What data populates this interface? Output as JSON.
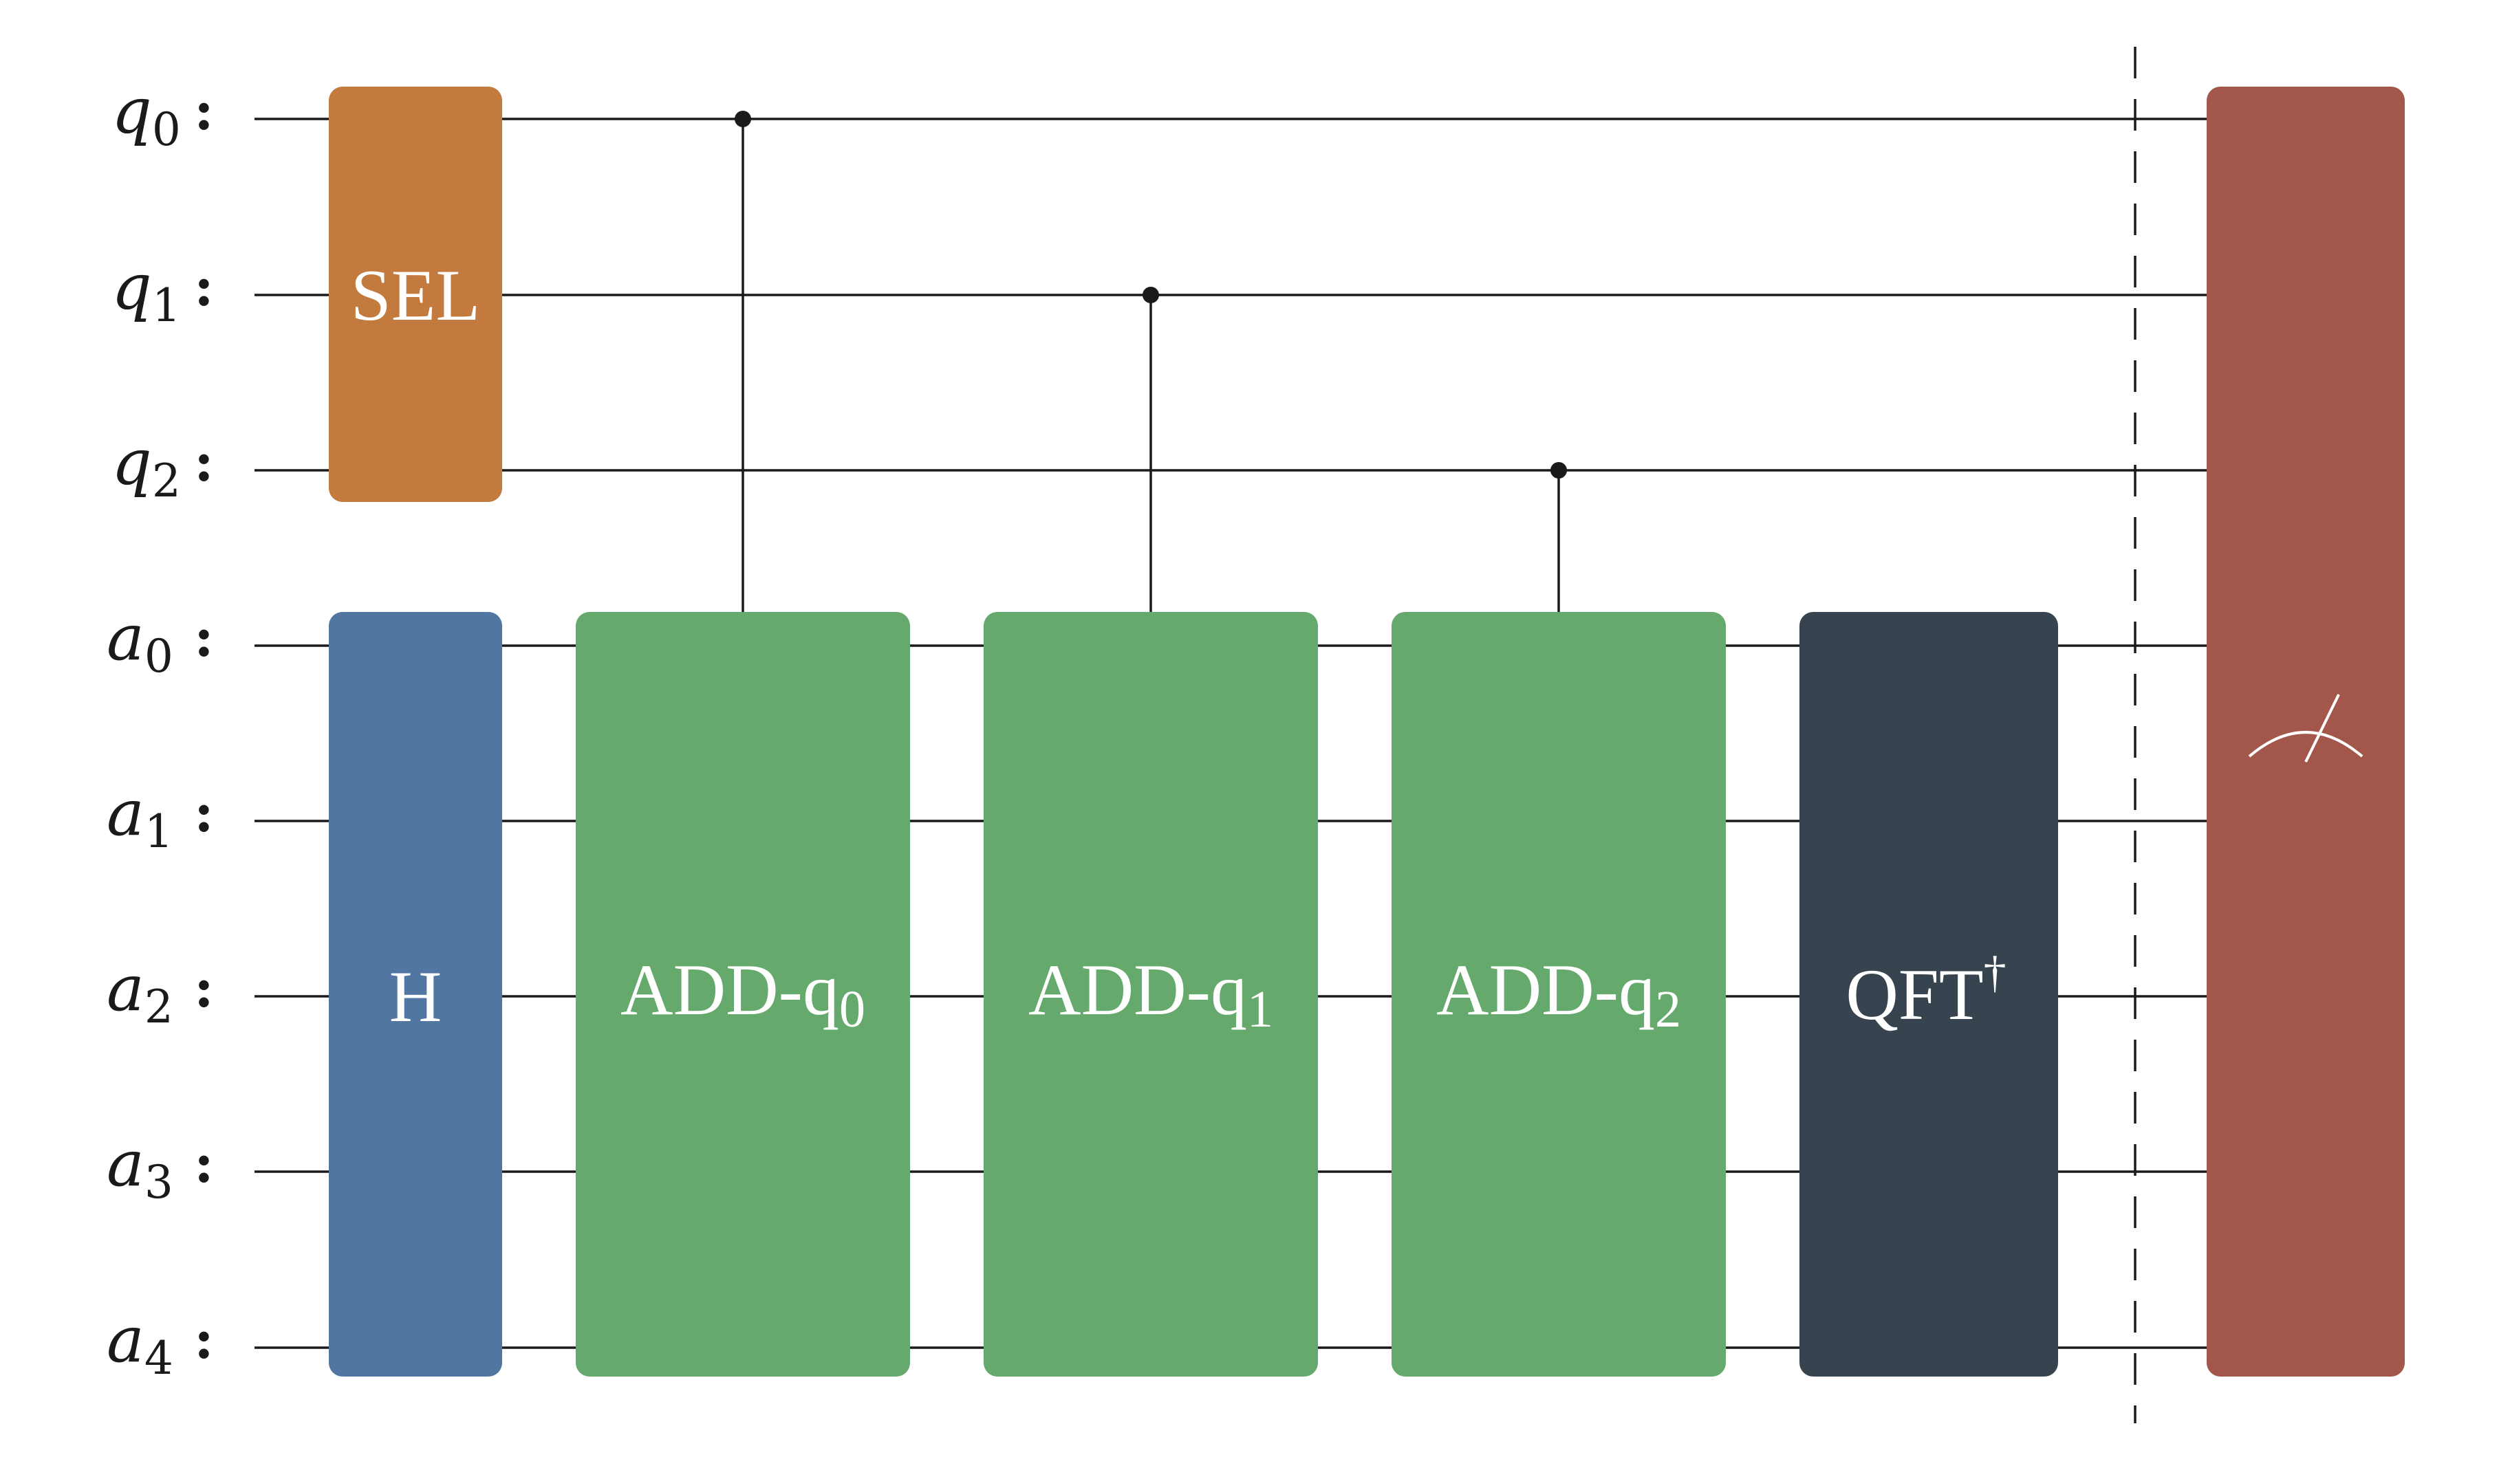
{
  "qubits": [
    {
      "base": "q",
      "sub": "0",
      "colon": ":"
    },
    {
      "base": "q",
      "sub": "1",
      "colon": ":"
    },
    {
      "base": "q",
      "sub": "2",
      "colon": ":"
    },
    {
      "base": "a",
      "sub": "0",
      "colon": ":"
    },
    {
      "base": "a",
      "sub": "1",
      "colon": ":"
    },
    {
      "base": "a",
      "sub": "2",
      "colon": ":"
    },
    {
      "base": "a",
      "sub": "3",
      "colon": ":"
    },
    {
      "base": "a",
      "sub": "4",
      "colon": ":"
    }
  ],
  "gates": {
    "sel": {
      "label": "SEL",
      "color": "#c27a3e"
    },
    "h": {
      "label": "H",
      "color": "#5276a2"
    },
    "add0": {
      "label": "ADD-q",
      "sub": "0",
      "color": "#65a96d"
    },
    "add1": {
      "label": "ADD-q",
      "sub": "1",
      "color": "#65a96d"
    },
    "add2": {
      "label": "ADD-q",
      "sub": "2",
      "color": "#65a96d"
    },
    "qft": {
      "label": "QFT",
      "sup": "†",
      "color": "#37434e"
    },
    "measure": {
      "icon": "measurement-meter-icon",
      "color": "#a3574a"
    }
  },
  "colors": {
    "wire": "#1a1a1a",
    "background": "#ffffff"
  }
}
